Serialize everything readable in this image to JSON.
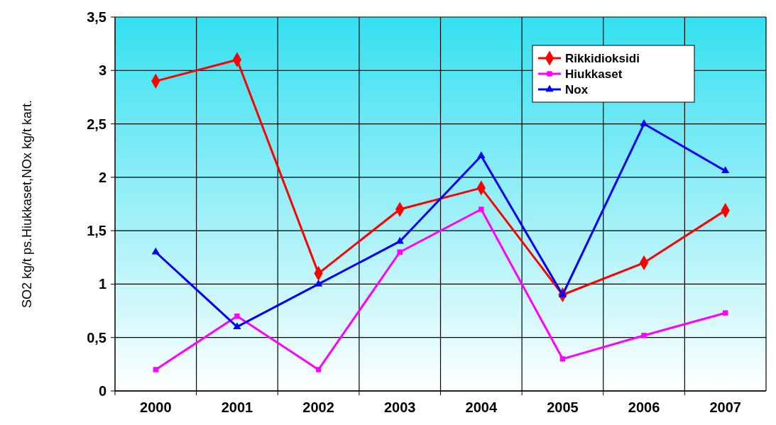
{
  "chart_data": {
    "type": "line",
    "ylabel": "SO2 kg/t ps.Hiukkaset,NOx kg/t kart.",
    "categories": [
      "2000",
      "2001",
      "2002",
      "2003",
      "2004",
      "2005",
      "2006",
      "2007"
    ],
    "series": [
      {
        "name": "Rikkidioksidi",
        "color": "#ff0000",
        "marker": "diamond",
        "values": [
          2.9,
          3.1,
          1.1,
          1.7,
          1.9,
          0.9,
          1.2,
          1.69
        ]
      },
      {
        "name": "Hiukkaset",
        "color": "#ff00ff",
        "marker": "square",
        "values": [
          0.2,
          0.7,
          0.2,
          1.3,
          1.7,
          0.3,
          0.52,
          0.73
        ]
      },
      {
        "name": "Nox",
        "color": "#0000ff",
        "marker": "triangle",
        "values": [
          1.3,
          0.6,
          1.0,
          1.4,
          2.2,
          0.9,
          2.5,
          2.06
        ]
      }
    ],
    "ylim": [
      0,
      3.5
    ],
    "yticks": [
      0,
      {
        "value": 0.5,
        "label": "0,5"
      },
      1,
      {
        "value": 1.5,
        "label": "1,5"
      },
      2,
      {
        "value": 2.5,
        "label": "2,5"
      },
      3,
      {
        "value": 3.5,
        "label": "3,5"
      }
    ],
    "grid": true,
    "legend": "top right",
    "line_style": "solid"
  }
}
